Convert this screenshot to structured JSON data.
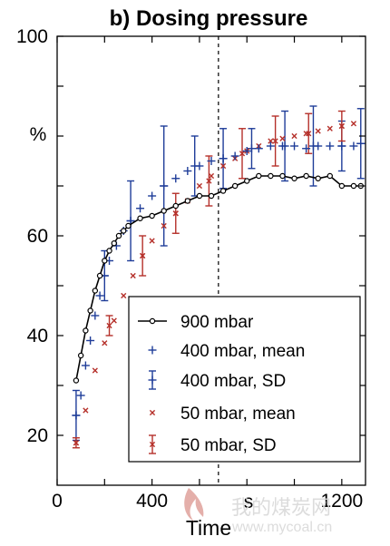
{
  "chart_data": {
    "type": "line",
    "title": "b) Dosing pressure",
    "xlabel": "Time",
    "x_unit": "s",
    "ylabel": "%",
    "xlim": [
      0,
      1300
    ],
    "ylim": [
      10,
      100
    ],
    "xticks": [
      0,
      400,
      1200
    ],
    "xtick_labels": [
      "0",
      "400",
      "1200"
    ],
    "yticks": [
      20,
      40,
      60,
      100
    ],
    "ytick_labels": [
      "20",
      "40",
      "60",
      "100"
    ],
    "vline_x": 680,
    "legend_position": "lower-right",
    "series": [
      {
        "name": "900 mbar",
        "color": "#000000",
        "style": "line-circle",
        "x": [
          80,
          100,
          120,
          140,
          160,
          180,
          200,
          220,
          240,
          260,
          280,
          300,
          350,
          400,
          450,
          500,
          550,
          600,
          650,
          700,
          750,
          800,
          850,
          900,
          950,
          1000,
          1050,
          1100,
          1150,
          1200,
          1250,
          1280
        ],
        "y": [
          31,
          36,
          41,
          45,
          49,
          52,
          55,
          57,
          58.5,
          60,
          61,
          62,
          63.5,
          64,
          65,
          66,
          67,
          68,
          68,
          69,
          70,
          71,
          72,
          72,
          72,
          71.5,
          72,
          71.5,
          72,
          70,
          70,
          70
        ]
      },
      {
        "name": "400 mbar, mean",
        "color": "#1f3d99",
        "style": "plus",
        "x": [
          80,
          100,
          120,
          140,
          160,
          180,
          200,
          220,
          250,
          280,
          310,
          350,
          400,
          450,
          500,
          550,
          600,
          650,
          700,
          750,
          800,
          850,
          900,
          950,
          1000,
          1050,
          1100,
          1150,
          1200,
          1250,
          1280
        ],
        "y": [
          24,
          28,
          34,
          39,
          44,
          48,
          52,
          55,
          58,
          61,
          63,
          65.5,
          68,
          70,
          71.5,
          73,
          74,
          75,
          75.5,
          76,
          77,
          77.5,
          78,
          78,
          78,
          77.5,
          78,
          78,
          78,
          78,
          78.5
        ]
      },
      {
        "name": "400 mbar, SD",
        "color": "#1f3d99",
        "style": "errorbar",
        "x": [
          80,
          200,
          310,
          450,
          580,
          700,
          820,
          960,
          1080,
          1200,
          1280
        ],
        "y": [
          24,
          52,
          63,
          70,
          74,
          75.5,
          77.5,
          78,
          78,
          78,
          78.5
        ],
        "err": [
          5,
          5,
          8,
          12,
          6,
          6,
          4,
          7,
          8,
          5,
          7
        ]
      },
      {
        "name": "50 mbar, mean",
        "color": "#b5302a",
        "style": "cross",
        "x": [
          80,
          120,
          160,
          200,
          240,
          280,
          320,
          360,
          400,
          450,
          500,
          550,
          600,
          650,
          700,
          750,
          800,
          850,
          900,
          950,
          1000,
          1050,
          1100,
          1150,
          1200,
          1250
        ],
        "y": [
          18.5,
          25,
          33,
          38.5,
          43,
          48,
          52,
          56,
          59,
          62,
          64.5,
          67,
          70,
          72,
          74,
          75.5,
          77,
          78,
          79,
          79.5,
          80,
          80.5,
          81,
          81.5,
          82,
          82.5
        ]
      },
      {
        "name": "50 mbar, SD",
        "color": "#b5302a",
        "style": "errorbar",
        "x": [
          80,
          220,
          360,
          500,
          640,
          780,
          920,
          1060,
          1200
        ],
        "y": [
          18.5,
          42,
          56,
          64.5,
          71,
          76.5,
          79,
          80.5,
          82
        ],
        "err": [
          1,
          2,
          4,
          4,
          5,
          5,
          5,
          4,
          3
        ]
      }
    ]
  },
  "watermark": {
    "text": "我的煤炭网",
    "url": "www.mycoal.cn"
  }
}
